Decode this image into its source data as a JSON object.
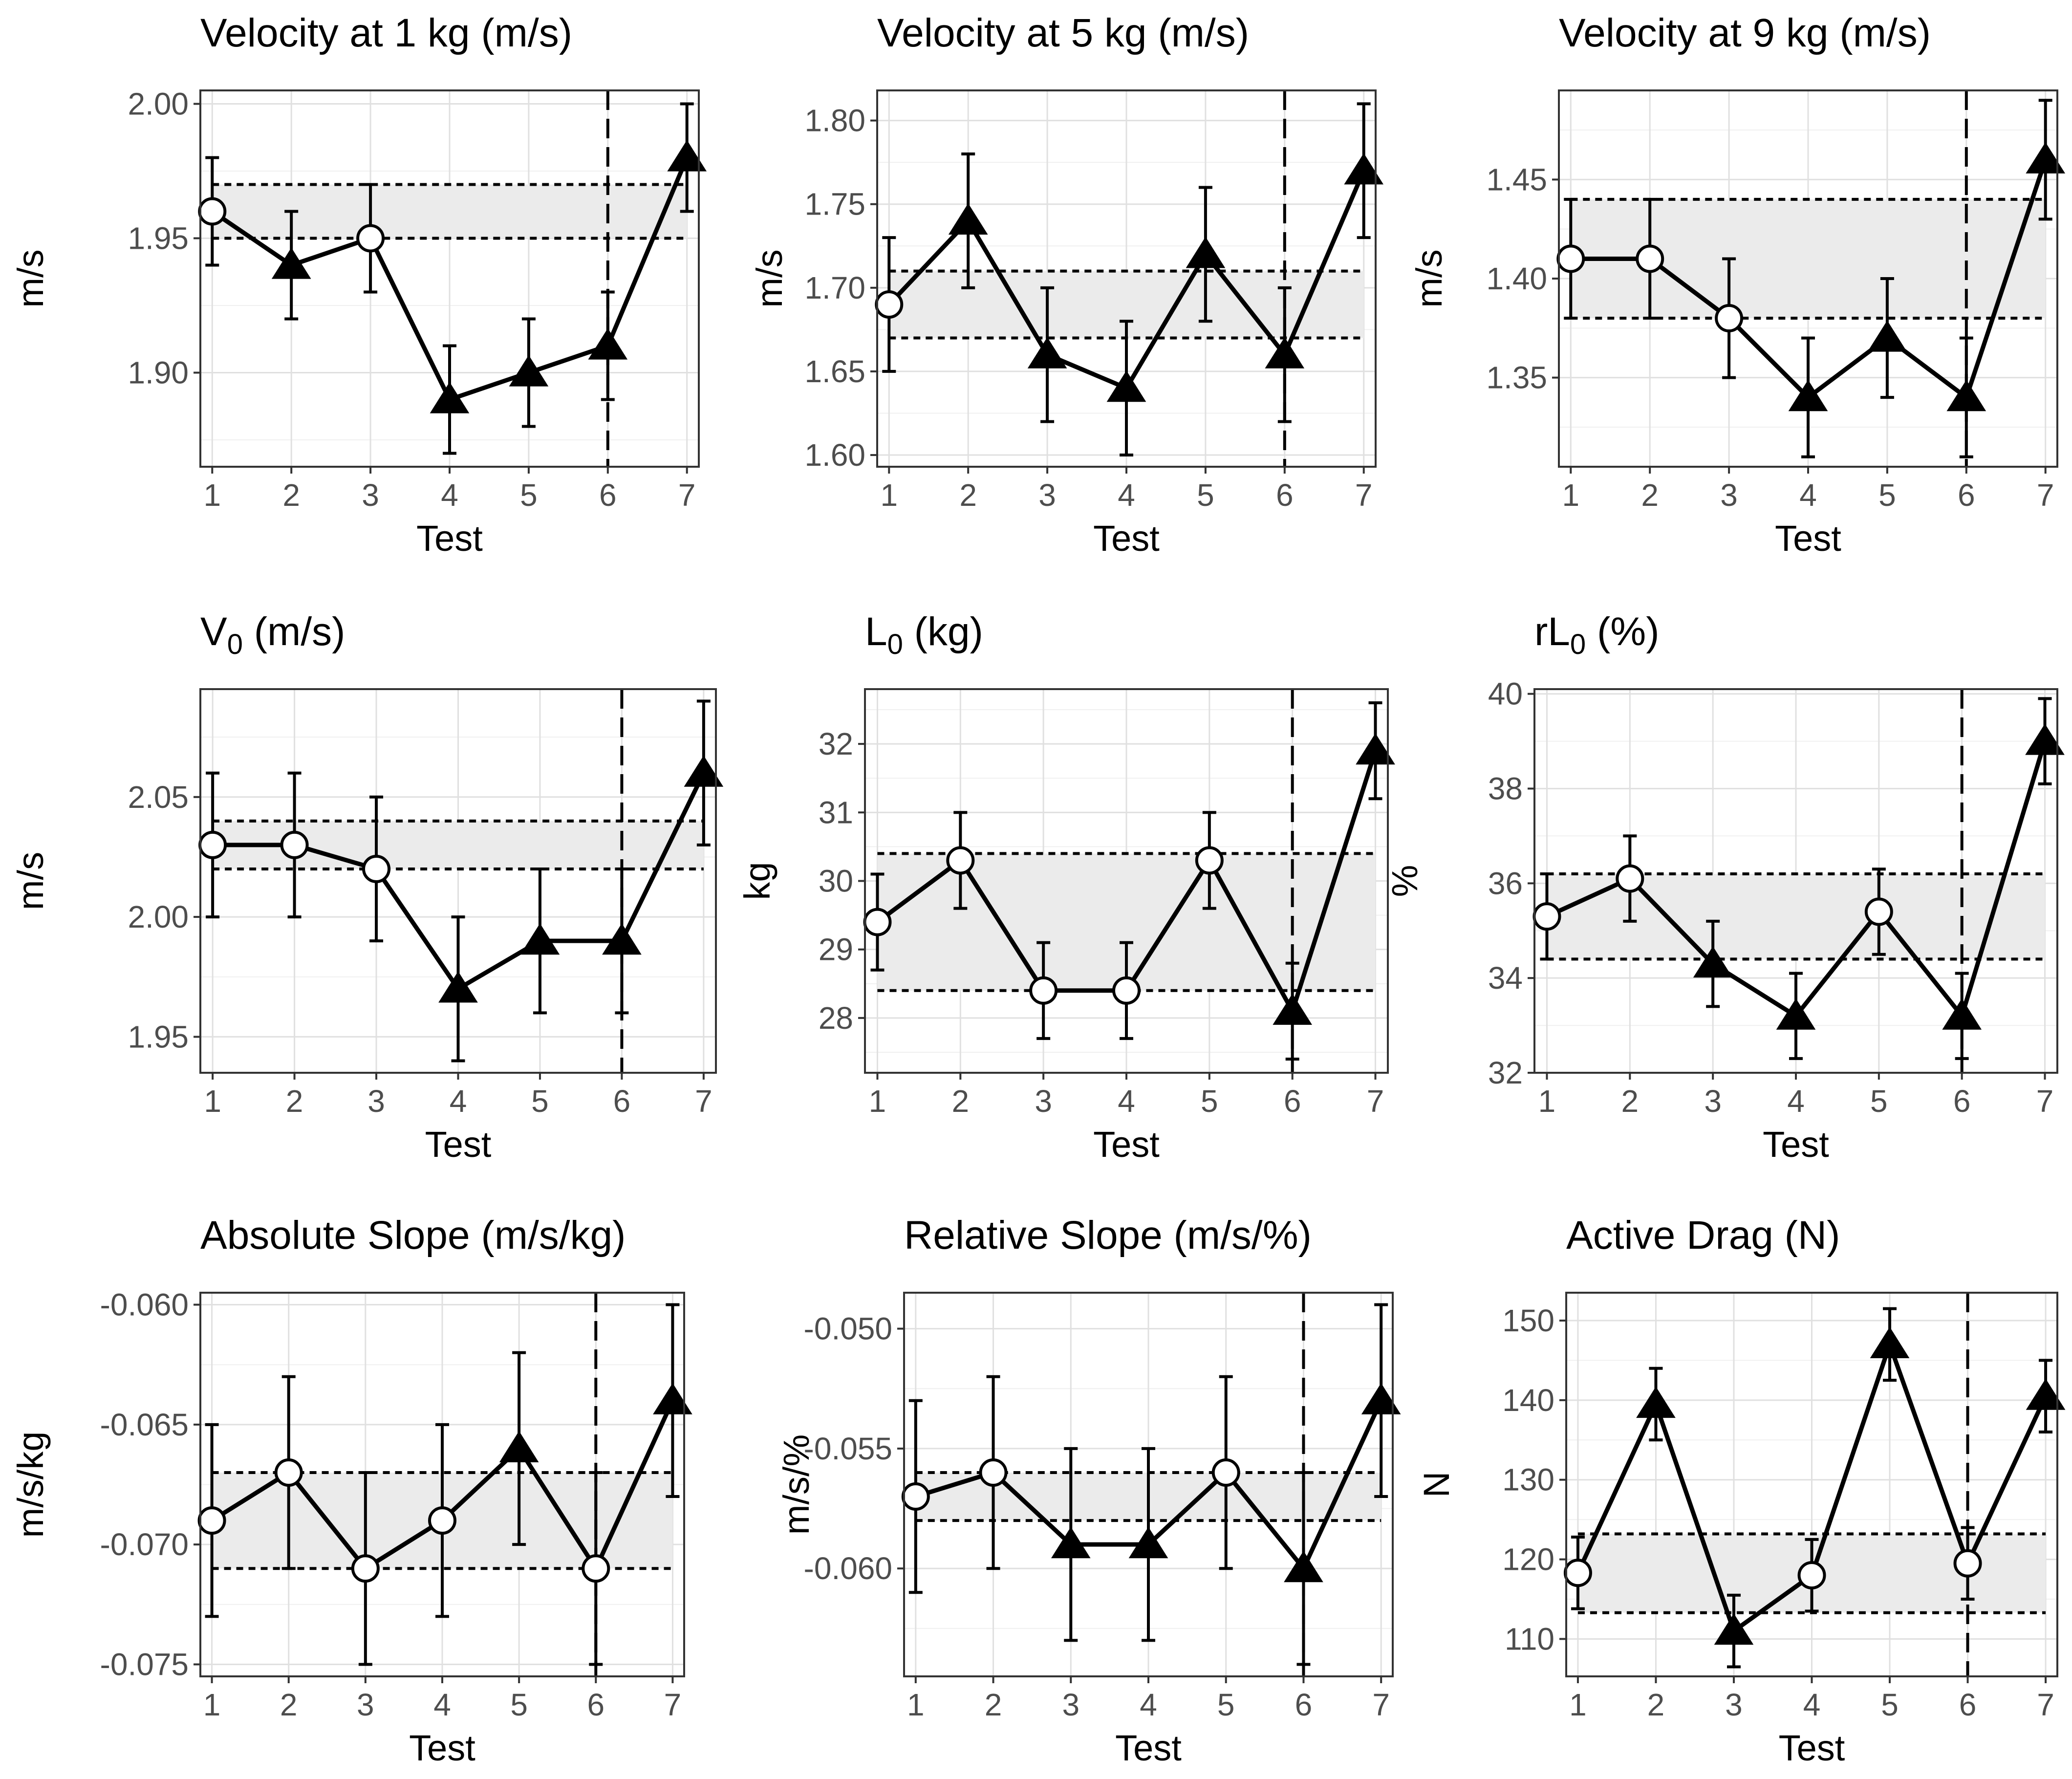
{
  "figure": {
    "shared_xlabel": "Test",
    "x_ticks": [
      1,
      2,
      3,
      4,
      5,
      6,
      7
    ],
    "colors": {
      "line": "#000000",
      "band_fill": "#ebebeb",
      "grid": "#e0e0e0",
      "tick_text": "#4d4d4d",
      "open_marker_fill": "#ffffff"
    },
    "marker_legend": {
      "circle": "open circle",
      "triangle": "filled triangle"
    }
  },
  "chart_data": [
    {
      "type": "line",
      "title": "Velocity at 1 kg (m/s)",
      "xlabel": "Test",
      "ylabel": "m/s",
      "x": [
        1,
        2,
        3,
        4,
        5,
        6,
        7
      ],
      "values": [
        1.96,
        1.94,
        1.95,
        1.89,
        1.9,
        1.91,
        1.98
      ],
      "error": [
        0.02,
        0.02,
        0.02,
        0.02,
        0.02,
        0.02,
        0.02
      ],
      "markers": [
        "circle",
        "triangle",
        "circle",
        "triangle",
        "triangle",
        "triangle",
        "triangle"
      ],
      "band": [
        1.95,
        1.97
      ],
      "vline_x": 6,
      "ylim": [
        1.865,
        2.005
      ],
      "yticks": [
        1.9,
        1.95,
        2.0
      ],
      "ytick_labels": [
        "1.90",
        "1.95",
        "2.00"
      ]
    },
    {
      "type": "line",
      "title": "Velocity at 5 kg (m/s)",
      "xlabel": "Test",
      "ylabel": "m/s",
      "x": [
        1,
        2,
        3,
        4,
        5,
        6,
        7
      ],
      "values": [
        1.69,
        1.74,
        1.66,
        1.64,
        1.72,
        1.66,
        1.77
      ],
      "error": [
        0.04,
        0.04,
        0.04,
        0.04,
        0.04,
        0.04,
        0.04
      ],
      "markers": [
        "circle",
        "triangle",
        "triangle",
        "triangle",
        "triangle",
        "triangle",
        "triangle"
      ],
      "band": [
        1.67,
        1.71
      ],
      "vline_x": 6,
      "ylim": [
        1.593,
        1.818
      ],
      "yticks": [
        1.6,
        1.65,
        1.7,
        1.75,
        1.8
      ],
      "ytick_labels": [
        "1.60",
        "1.65",
        "1.70",
        "1.75",
        "1.80"
      ]
    },
    {
      "type": "line",
      "title": "Velocity at 9 kg (m/s)",
      "xlabel": "Test",
      "ylabel": "m/s",
      "x": [
        1,
        2,
        3,
        4,
        5,
        6,
        7
      ],
      "values": [
        1.41,
        1.41,
        1.38,
        1.34,
        1.37,
        1.34,
        1.46
      ],
      "error": [
        0.03,
        0.03,
        0.03,
        0.03,
        0.03,
        0.03,
        0.03
      ],
      "markers": [
        "circle",
        "circle",
        "circle",
        "triangle",
        "triangle",
        "triangle",
        "triangle"
      ],
      "band": [
        1.38,
        1.44
      ],
      "vline_x": 6,
      "ylim": [
        1.305,
        1.495
      ],
      "yticks": [
        1.35,
        1.4,
        1.45
      ],
      "ytick_labels": [
        "1.35",
        "1.40",
        "1.45"
      ]
    },
    {
      "type": "line",
      "title": "V",
      "title_subscript": "0",
      "title_suffix": " (m/s)",
      "xlabel": "Test",
      "ylabel": "m/s",
      "x": [
        1,
        2,
        3,
        4,
        5,
        6,
        7
      ],
      "values": [
        2.03,
        2.03,
        2.02,
        1.97,
        1.99,
        1.99,
        2.06
      ],
      "error": [
        0.03,
        0.03,
        0.03,
        0.03,
        0.03,
        0.03,
        0.03
      ],
      "markers": [
        "circle",
        "circle",
        "circle",
        "triangle",
        "triangle",
        "triangle",
        "triangle"
      ],
      "band": [
        2.02,
        2.04
      ],
      "vline_x": 6,
      "ylim": [
        1.935,
        2.095
      ],
      "yticks": [
        1.95,
        2.0,
        2.05
      ],
      "ytick_labels": [
        "1.95",
        "2.00",
        "2.05"
      ]
    },
    {
      "type": "line",
      "title": "L",
      "title_subscript": "0",
      "title_suffix": " (kg)",
      "xlabel": "Test",
      "ylabel": "kg",
      "x": [
        1,
        2,
        3,
        4,
        5,
        6,
        7
      ],
      "values": [
        29.4,
        30.3,
        28.4,
        28.4,
        30.3,
        28.1,
        31.9
      ],
      "error": [
        0.7,
        0.7,
        0.7,
        0.7,
        0.7,
        0.7,
        0.7
      ],
      "markers": [
        "circle",
        "circle",
        "circle",
        "circle",
        "circle",
        "triangle",
        "triangle"
      ],
      "band": [
        28.4,
        30.4
      ],
      "vline_x": 6,
      "ylim": [
        27.2,
        32.8
      ],
      "yticks": [
        28,
        29,
        30,
        31,
        32
      ],
      "ytick_labels": [
        "28",
        "29",
        "30",
        "31",
        "32"
      ]
    },
    {
      "type": "line",
      "title": "rL",
      "title_subscript": "0",
      "title_suffix": " (%)",
      "xlabel": "Test",
      "ylabel": "%",
      "x": [
        1,
        2,
        3,
        4,
        5,
        6,
        7
      ],
      "values": [
        35.3,
        36.1,
        34.3,
        33.2,
        35.4,
        33.2,
        39.0
      ],
      "error": [
        0.9,
        0.9,
        0.9,
        0.9,
        0.9,
        0.9,
        0.9
      ],
      "markers": [
        "circle",
        "circle",
        "triangle",
        "triangle",
        "circle",
        "triangle",
        "triangle"
      ],
      "band": [
        34.4,
        36.2
      ],
      "vline_x": 6,
      "ylim": [
        32.0,
        40.1
      ],
      "yticks": [
        32,
        34,
        36,
        38,
        40
      ],
      "ytick_labels": [
        "32",
        "34",
        "36",
        "38",
        "40"
      ]
    },
    {
      "type": "line",
      "title": "Absolute Slope (m/s/kg)",
      "xlabel": "Test",
      "ylabel": "m/s/kg",
      "x": [
        1,
        2,
        3,
        4,
        5,
        6,
        7
      ],
      "values": [
        -0.069,
        -0.067,
        -0.071,
        -0.069,
        -0.066,
        -0.071,
        -0.064
      ],
      "error": [
        0.004,
        0.004,
        0.004,
        0.004,
        0.004,
        0.004,
        0.004
      ],
      "markers": [
        "circle",
        "circle",
        "circle",
        "circle",
        "triangle",
        "circle",
        "triangle"
      ],
      "band": [
        -0.071,
        -0.067
      ],
      "vline_x": 6,
      "ylim": [
        -0.0755,
        -0.0595
      ],
      "yticks": [
        -0.075,
        -0.07,
        -0.065,
        -0.06
      ],
      "ytick_labels": [
        "-0.075",
        "-0.070",
        "-0.065",
        "-0.060"
      ]
    },
    {
      "type": "line",
      "title": "Relative Slope (m/s/%)",
      "xlabel": "Test",
      "ylabel": "m/s/%",
      "x": [
        1,
        2,
        3,
        4,
        5,
        6,
        7
      ],
      "values": [
        -0.057,
        -0.056,
        -0.059,
        -0.059,
        -0.056,
        -0.06,
        -0.053
      ],
      "error": [
        0.004,
        0.004,
        0.004,
        0.004,
        0.004,
        0.004,
        0.004
      ],
      "markers": [
        "circle",
        "circle",
        "triangle",
        "triangle",
        "circle",
        "triangle",
        "triangle"
      ],
      "band": [
        -0.058,
        -0.056
      ],
      "vline_x": 6,
      "ylim": [
        -0.0645,
        -0.0485
      ],
      "yticks": [
        -0.06,
        -0.055,
        -0.05
      ],
      "ytick_labels": [
        "-0.060",
        "-0.055",
        "-0.050"
      ]
    },
    {
      "type": "line",
      "title": "Active Drag (N)",
      "xlabel": "Test",
      "ylabel": "N",
      "x": [
        1,
        2,
        3,
        4,
        5,
        6,
        7
      ],
      "values": [
        118.3,
        139.5,
        111.0,
        118.0,
        147.0,
        119.5,
        140.5
      ],
      "error": [
        4.5,
        4.5,
        4.5,
        4.5,
        4.5,
        4.5,
        4.5
      ],
      "markers": [
        "circle",
        "triangle",
        "triangle",
        "circle",
        "triangle",
        "circle",
        "triangle"
      ],
      "band": [
        113.3,
        123.2
      ],
      "vline_x": 6,
      "ylim": [
        105.3,
        153.5
      ],
      "yticks": [
        110,
        120,
        130,
        140,
        150
      ],
      "ytick_labels": [
        "110",
        "120",
        "130",
        "140",
        "150"
      ]
    }
  ]
}
